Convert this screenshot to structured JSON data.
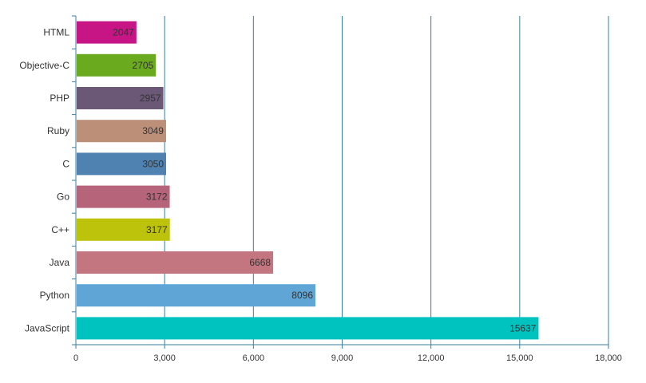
{
  "colors": {
    "grid": "#3a7fa0",
    "axis": "#3a7fa0",
    "text": "#333333"
  },
  "chart_data": {
    "type": "bar",
    "orientation": "horizontal",
    "title": "",
    "xlabel": "",
    "ylabel": "",
    "grid": true,
    "xlim": [
      0,
      18000
    ],
    "x_ticks": [
      0,
      3000,
      6000,
      9000,
      12000,
      15000,
      18000
    ],
    "x_tick_labels": [
      "0",
      "3,000",
      "6,000",
      "9,000",
      "12,000",
      "15,000",
      "18,000"
    ],
    "categories": [
      "HTML",
      "Objective-C",
      "PHP",
      "Ruby",
      "C",
      "Go",
      "C++",
      "Java",
      "Python",
      "JavaScript"
    ],
    "values": [
      2047,
      2705,
      2957,
      3049,
      3050,
      3172,
      3177,
      6668,
      8096,
      15637
    ],
    "value_labels": [
      "2047",
      "2705",
      "2957",
      "3049",
      "3050",
      "3172",
      "3177",
      "6668",
      "8096",
      "15637"
    ],
    "bar_colors": [
      "#c71585",
      "#6aaa1e",
      "#6b5876",
      "#bb8f78",
      "#4f82b0",
      "#b5647a",
      "#bdc20a",
      "#c47680",
      "#5fa6d6",
      "#00c2bf"
    ]
  }
}
